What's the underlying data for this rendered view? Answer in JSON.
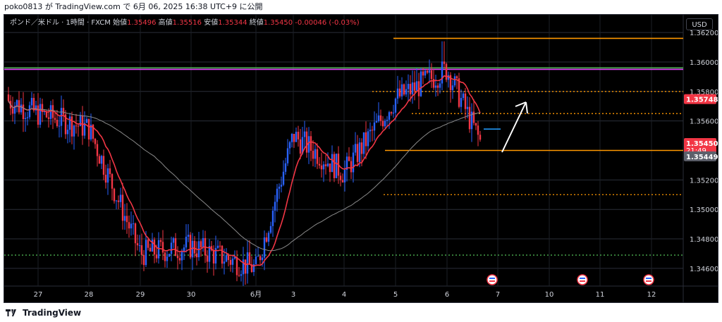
{
  "header": {
    "text": "poko0813 が TradingView.com で 6月 06, 2025 16:38 UTC+9 に公開"
  },
  "footer": {
    "brand": "TradingView"
  },
  "legend": {
    "symbol": "ポンド／米ドル · 1時間 · FXCM",
    "open_label": "始値",
    "open": "1.35496",
    "high_label": "高値",
    "high": "1.35516",
    "low_label": "安値",
    "low": "1.35344",
    "close_label": "終値",
    "close": "1.35450",
    "change": "-0.00046 (-0.03%)"
  },
  "currency_button": "USD",
  "price_tags": {
    "upper": "1.35748",
    "current": "1.35450",
    "countdown": "21:49",
    "lower": "1.35449"
  },
  "colors": {
    "up": "#2962ff",
    "down": "#f23645",
    "ma_fast": "#f23645",
    "ma_slow": "#8a8a8a",
    "level_orange": "#ff9800",
    "level_green": "#4caf50",
    "level_purple": "#e040fb",
    "arrow": "#ffffff"
  },
  "chart_data": {
    "type": "candlestick",
    "title": "ポンド／米ドル · 1時間 · FXCM",
    "y_ticks": [
      "1.36200",
      "1.36000",
      "1.35800",
      "1.35600",
      "1.35200",
      "1.35000",
      "1.34800",
      "1.34600"
    ],
    "ylim": [
      1.3448,
      1.3632
    ],
    "x_ticks": [
      "27",
      "28",
      "29",
      "30",
      "6月",
      "3",
      "4",
      "5",
      "6",
      "7",
      "10",
      "11",
      "12"
    ],
    "grid": true,
    "ohlc_series_note": "hourly candles 27 May – 6 Jun 2025 (approximate)",
    "anchor_points": [
      {
        "x": "27",
        "close": 1.3565
      },
      {
        "x": "28",
        "close": 1.3555
      },
      {
        "x": "29",
        "close": 1.347
      },
      {
        "x": "30",
        "close": 1.3475
      },
      {
        "x": "6月",
        "close": 1.346
      },
      {
        "x": "3",
        "close": 1.355
      },
      {
        "x": "4",
        "close": 1.3525
      },
      {
        "x": "5",
        "close": 1.3575
      },
      {
        "x": "6",
        "close": 1.3595
      },
      {
        "x": "6 end",
        "close": 1.3545
      }
    ],
    "horizontal_levels": [
      {
        "price": 1.3616,
        "color": "#ff9800",
        "style": "solid"
      },
      {
        "price": 1.3596,
        "color": "#4caf50",
        "style": "solid"
      },
      {
        "price": 1.3595,
        "color": "#e040fb",
        "style": "solid"
      },
      {
        "price": 1.358,
        "color": "#ff9800",
        "style": "dotted"
      },
      {
        "price": 1.3565,
        "color": "#ff9800",
        "style": "dotted"
      },
      {
        "price": 1.354,
        "color": "#ff9800",
        "style": "solid"
      },
      {
        "price": 1.351,
        "color": "#ff9800",
        "style": "dotted"
      },
      {
        "price": 1.3469,
        "color": "#4caf50",
        "style": "dotted"
      }
    ],
    "annotation": "white arrow pointing up-right toward 1.3578"
  }
}
